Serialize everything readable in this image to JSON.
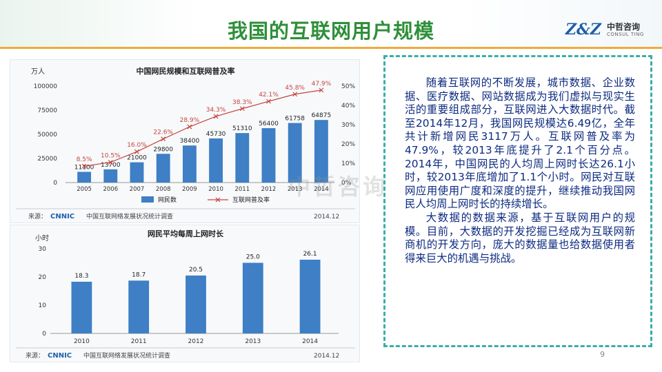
{
  "page": {
    "title": "我国的互联网用户规模",
    "page_number": "9",
    "watermark": "中哲咨询"
  },
  "logo": {
    "mark": "Z&Z",
    "name_cn": "中哲咨询",
    "name_en": "CONSUL TING"
  },
  "colors": {
    "bar": "#3e7fc5",
    "line": "#c6453e",
    "title": "#2f8f3a",
    "accent_line": "#f0a93a",
    "text": "#0d2b80",
    "box_border": "#3aaea6"
  },
  "chart_data": [
    {
      "type": "bar",
      "title": "中国网民规模和互联网普及率",
      "y_unit_label": "万人",
      "categories": [
        "2005",
        "2006",
        "2007",
        "2008",
        "2009",
        "2010",
        "2011",
        "2012",
        "2013",
        "2014"
      ],
      "ylim": [
        0,
        100000
      ],
      "yticks": [
        "0",
        "25000",
        "50000",
        "75000",
        "100000"
      ],
      "y2lim": [
        0,
        50
      ],
      "y2ticks": [
        "0%",
        "10%",
        "20%",
        "30%",
        "40%",
        "50%"
      ],
      "series": [
        {
          "name": "网民数",
          "kind": "bar",
          "values": [
            11100,
            13700,
            21000,
            29800,
            38400,
            45730,
            51310,
            56400,
            61758,
            64875
          ],
          "labels": [
            "11100",
            "13700",
            "21000",
            "29800",
            "38400",
            "45730",
            "51310",
            "56400",
            "61758",
            "64875"
          ]
        },
        {
          "name": "互联网普及率",
          "kind": "line",
          "axis": "right",
          "values": [
            8.5,
            10.5,
            16.0,
            22.6,
            28.9,
            34.3,
            38.3,
            42.1,
            45.8,
            47.9
          ],
          "labels": [
            "8.5%",
            "10.5%",
            "16.0%",
            "22.6%",
            "28.9%",
            "34.3%",
            "38.3%",
            "42.1%",
            "45.8%",
            "47.9%"
          ]
        }
      ],
      "source": "来源：",
      "source_logo": "CNNIC",
      "source_text": "中国互联网络发展状况统计调查",
      "date": "2014.12",
      "grid": false,
      "legend": "bottom"
    },
    {
      "type": "bar",
      "title": "网民平均每周上网时长",
      "y_unit_label": "小时",
      "categories": [
        "2010",
        "2011",
        "2012",
        "2013",
        "2014"
      ],
      "ylim": [
        0,
        30
      ],
      "yticks": [
        "0",
        "10",
        "20",
        "30"
      ],
      "series": [
        {
          "kind": "bar",
          "values": [
            18.3,
            18.7,
            20.5,
            25.0,
            26.1
          ],
          "labels": [
            "18.3",
            "18.7",
            "20.5",
            "25.0",
            "26.1"
          ]
        }
      ],
      "source": "来源：",
      "source_logo": "CNNIC",
      "source_text": "中国互联网络发展状况统计调查",
      "date": "2014.12",
      "grid": false
    }
  ],
  "text": {
    "paragraphs": [
      "随着互联网的不断发展，城市数据、企业数据、医疗数据、网站数据成为我们虚拟与现实生活的重要组成部分，互联网进入大数据时代。截至2014年12月，我国网民规模达6.49亿，全年共计新增网民3117万人。互联网普及率为47.9%，较2013年底提升了2.1个百分点。2014年，中国网民的人均周上网时长达26.1小时，较2013年底增加了1.1个小时。网民对互联网应用使用广度和深度的提升，继续推动我国网民人均周上网时长的持续增长。",
      "大数据的数据来源，基于互联网用户的规模。目前，大数据的开发挖掘已经成为互联网新商机的开发方向，庞大的数据量也给数据使用者得来巨大的机遇与挑战。"
    ]
  }
}
